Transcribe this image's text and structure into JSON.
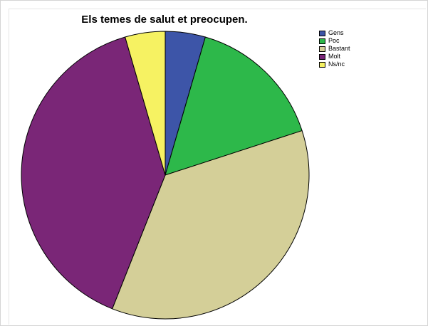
{
  "chart_data": {
    "type": "pie",
    "title": "Els temes de salut et preocupen.",
    "categories": [
      "Gens",
      "Poc",
      "Bastant",
      "Molt",
      "Ns/nc"
    ],
    "values": [
      4.5,
      15.5,
      36.0,
      39.5,
      4.5
    ],
    "unit": "percent",
    "start_angle_deg": 0,
    "direction": "clockwise",
    "colors": [
      "#3d55a8",
      "#2db84a",
      "#d4cf98",
      "#7a2677",
      "#f6f262"
    ],
    "legend_position": "top-right"
  }
}
